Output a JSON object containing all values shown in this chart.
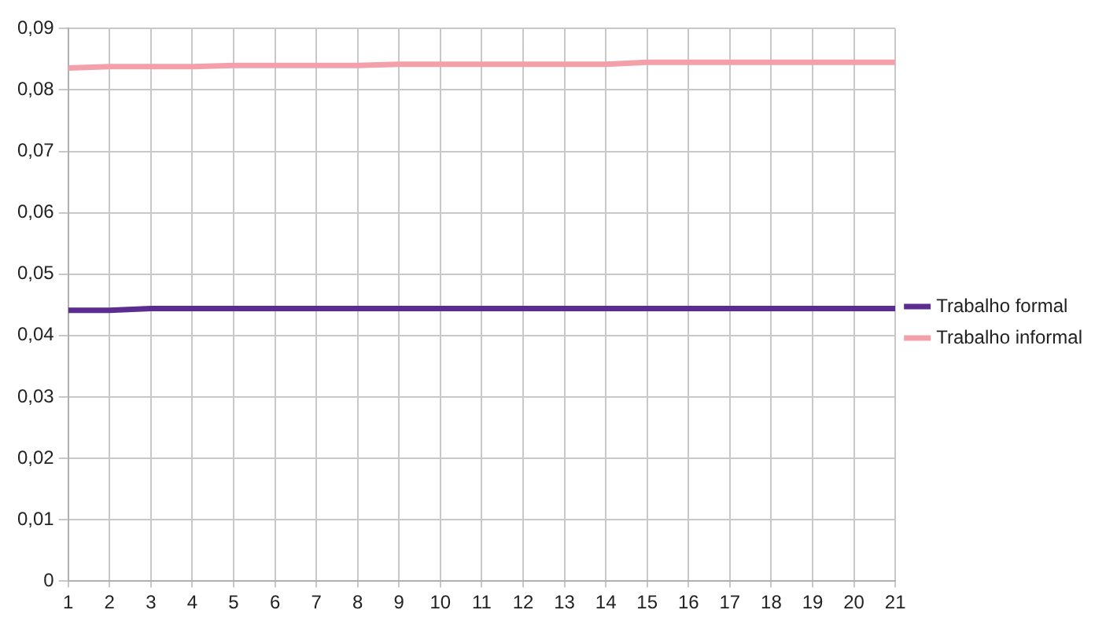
{
  "chart_data": {
    "type": "line",
    "x": [
      1,
      2,
      3,
      4,
      5,
      6,
      7,
      8,
      9,
      10,
      11,
      12,
      13,
      14,
      15,
      16,
      17,
      18,
      19,
      20,
      21
    ],
    "series": [
      {
        "name": "Trabalho formal",
        "color": "#5b2d90",
        "values": [
          0.0441,
          0.0441,
          0.0444,
          0.0444,
          0.0444,
          0.0444,
          0.0444,
          0.0444,
          0.0444,
          0.0444,
          0.0444,
          0.0444,
          0.0444,
          0.0444,
          0.0444,
          0.0444,
          0.0444,
          0.0444,
          0.0444,
          0.0444,
          0.0444
        ]
      },
      {
        "name": "Trabalho informal",
        "color": "#f4a0aa",
        "values": [
          0.0836,
          0.0838,
          0.0838,
          0.0838,
          0.084,
          0.084,
          0.084,
          0.084,
          0.0842,
          0.0842,
          0.0842,
          0.0842,
          0.0842,
          0.0842,
          0.0845,
          0.0845,
          0.0845,
          0.0845,
          0.0845,
          0.0845,
          0.0845
        ]
      }
    ],
    "xlim": [
      1,
      21
    ],
    "xticks": [
      1,
      2,
      3,
      4,
      5,
      6,
      7,
      8,
      9,
      10,
      11,
      12,
      13,
      14,
      15,
      16,
      17,
      18,
      19,
      20,
      21
    ],
    "ylim": [
      0,
      0.09
    ],
    "yticks": [
      {
        "value": 0,
        "label": "0"
      },
      {
        "value": 0.01,
        "label": "0,01"
      },
      {
        "value": 0.02,
        "label": "0,02"
      },
      {
        "value": 0.03,
        "label": "0,03"
      },
      {
        "value": 0.04,
        "label": "0,04"
      },
      {
        "value": 0.05,
        "label": "0,05"
      },
      {
        "value": 0.06,
        "label": "0,06"
      },
      {
        "value": 0.07,
        "label": "0,07"
      },
      {
        "value": 0.08,
        "label": "0,08"
      },
      {
        "value": 0.09,
        "label": "0,09"
      }
    ],
    "grid": true,
    "legend": "right",
    "marker": "none",
    "line_style": "solid"
  }
}
